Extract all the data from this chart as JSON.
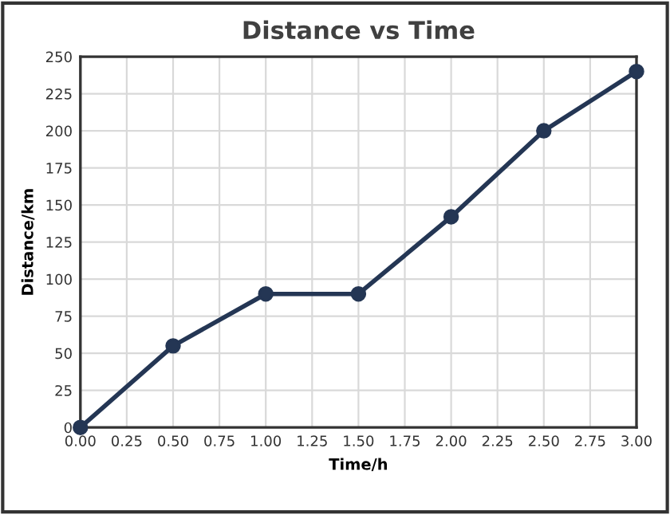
{
  "chart_data": {
    "type": "line",
    "title": "Distance vs Time",
    "xlabel": "Time/h",
    "ylabel": "Distance/km",
    "x": [
      0,
      0.5,
      1,
      1.5,
      2,
      2.5,
      3
    ],
    "series": [
      {
        "color": "#243654",
        "values": [
          0,
          55,
          90,
          90,
          142,
          200,
          240
        ]
      }
    ],
    "xlim": [
      0,
      3
    ],
    "ylim": [
      0,
      250
    ],
    "xticks": [
      {
        "value": 0,
        "label": "0.00"
      },
      {
        "value": 0.25,
        "label": "0.25"
      },
      {
        "value": 0.5,
        "label": "0.50"
      },
      {
        "value": 0.75,
        "label": "0.75"
      },
      {
        "value": 1,
        "label": "1.00"
      },
      {
        "value": 1.25,
        "label": "1.25"
      },
      {
        "value": 1.5,
        "label": "1.50"
      },
      {
        "value": 1.75,
        "label": "1.75"
      },
      {
        "value": 2,
        "label": "2.00"
      },
      {
        "value": 2.25,
        "label": "2.25"
      },
      {
        "value": 2.5,
        "label": "2.50"
      },
      {
        "value": 2.75,
        "label": "2.75"
      },
      {
        "value": 3,
        "label": "3.00"
      }
    ],
    "yticks": [
      0,
      25,
      50,
      75,
      100,
      125,
      150,
      175,
      200,
      225,
      250
    ],
    "grid": true,
    "marker": "circle",
    "line_style": "solid"
  }
}
